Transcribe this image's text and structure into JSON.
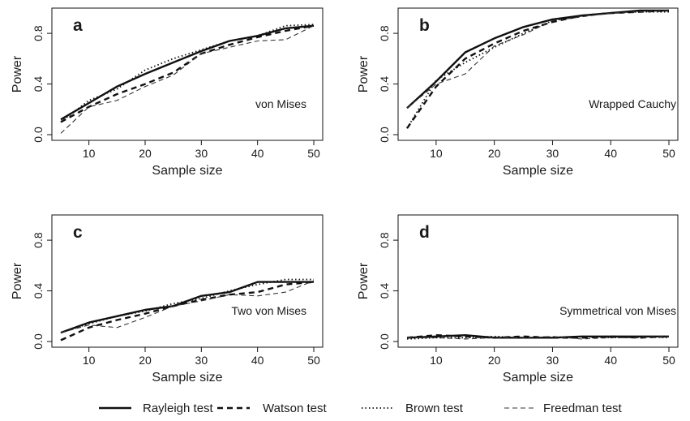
{
  "figure": {
    "ylabel": "Power",
    "xlabel": "Sample size"
  },
  "legend": {
    "items": [
      {
        "label": "Rayleigh test",
        "style": "solid"
      },
      {
        "label": "Watson test",
        "style": "dashed"
      },
      {
        "label": "Brown test",
        "style": "dotted"
      },
      {
        "label": "Freedman test",
        "style": "thin-dashed"
      }
    ]
  },
  "chart_data": [
    {
      "type": "line",
      "panel_letter": "a",
      "annotation": "von Mises",
      "xlabel": "Sample size",
      "ylabel": "Power",
      "x": [
        5,
        10,
        15,
        20,
        25,
        30,
        35,
        40,
        45,
        50
      ],
      "xlim": [
        5,
        50
      ],
      "ylim": [
        0,
        0.98
      ],
      "xticks": [
        10,
        20,
        30,
        40,
        50
      ],
      "yticks": [
        "0.0",
        "0.4",
        "0.8"
      ],
      "series": [
        {
          "name": "Rayleigh test",
          "values": [
            0.12,
            0.25,
            0.38,
            0.48,
            0.57,
            0.66,
            0.74,
            0.78,
            0.84,
            0.86
          ]
        },
        {
          "name": "Watson test",
          "values": [
            0.1,
            0.22,
            0.32,
            0.4,
            0.49,
            0.64,
            0.71,
            0.77,
            0.82,
            0.86
          ]
        },
        {
          "name": "Brown test",
          "values": [
            0.1,
            0.27,
            0.36,
            0.51,
            0.6,
            0.67,
            0.74,
            0.78,
            0.86,
            0.87
          ]
        },
        {
          "name": "Freedman test",
          "values": [
            0.01,
            0.22,
            0.27,
            0.38,
            0.47,
            0.64,
            0.69,
            0.74,
            0.75,
            0.86
          ]
        }
      ]
    },
    {
      "type": "line",
      "panel_letter": "b",
      "annotation": "Wrapped Cauchy",
      "xlabel": "Sample size",
      "ylabel": "Power",
      "x": [
        5,
        10,
        15,
        20,
        25,
        30,
        35,
        40,
        45,
        50
      ],
      "xlim": [
        5,
        50
      ],
      "ylim": [
        0,
        0.98
      ],
      "xticks": [
        10,
        20,
        30,
        40,
        50
      ],
      "yticks": [
        "0.0",
        "0.4",
        "0.8"
      ],
      "series": [
        {
          "name": "Rayleigh test",
          "values": [
            0.21,
            0.42,
            0.65,
            0.76,
            0.85,
            0.91,
            0.94,
            0.96,
            0.98,
            0.98
          ]
        },
        {
          "name": "Watson test",
          "values": [
            0.05,
            0.38,
            0.6,
            0.72,
            0.82,
            0.89,
            0.94,
            0.96,
            0.97,
            0.98
          ]
        },
        {
          "name": "Brown test",
          "values": [
            0.05,
            0.43,
            0.57,
            0.69,
            0.8,
            0.9,
            0.94,
            0.96,
            0.97,
            0.97
          ]
        },
        {
          "name": "Freedman test",
          "values": [
            0.21,
            0.4,
            0.48,
            0.7,
            0.79,
            0.9,
            0.93,
            0.96,
            0.97,
            0.98
          ]
        }
      ]
    },
    {
      "type": "line",
      "panel_letter": "c",
      "annotation": "Two von Mises",
      "xlabel": "Sample size",
      "ylabel": "Power",
      "x": [
        5,
        10,
        15,
        20,
        25,
        30,
        35,
        40,
        45,
        50
      ],
      "xlim": [
        5,
        50
      ],
      "ylim": [
        0,
        0.98
      ],
      "xticks": [
        10,
        20,
        30,
        40,
        50
      ],
      "yticks": [
        "0.0",
        "0.4",
        "0.8"
      ],
      "series": [
        {
          "name": "Rayleigh test",
          "values": [
            0.07,
            0.15,
            0.2,
            0.25,
            0.28,
            0.36,
            0.39,
            0.47,
            0.47,
            0.47
          ]
        },
        {
          "name": "Watson test",
          "values": [
            0.01,
            0.11,
            0.17,
            0.22,
            0.28,
            0.33,
            0.37,
            0.39,
            0.45,
            0.47
          ]
        },
        {
          "name": "Brown test",
          "values": [
            0.07,
            0.14,
            0.2,
            0.24,
            0.3,
            0.34,
            0.4,
            0.45,
            0.49,
            0.49
          ]
        },
        {
          "name": "Freedman test",
          "values": [
            0.07,
            0.13,
            0.11,
            0.19,
            0.28,
            0.32,
            0.37,
            0.36,
            0.39,
            0.48
          ]
        }
      ]
    },
    {
      "type": "line",
      "panel_letter": "d",
      "annotation": "Symmetrical von Mises",
      "xlabel": "Sample size",
      "ylabel": "Power",
      "x": [
        5,
        10,
        15,
        20,
        25,
        30,
        35,
        40,
        45,
        50
      ],
      "xlim": [
        5,
        50
      ],
      "ylim": [
        0,
        0.98
      ],
      "xticks": [
        10,
        20,
        30,
        40,
        50
      ],
      "yticks": [
        "0.0",
        "0.4",
        "0.8"
      ],
      "series": [
        {
          "name": "Rayleigh test",
          "values": [
            0.03,
            0.04,
            0.05,
            0.03,
            0.03,
            0.03,
            0.04,
            0.04,
            0.04,
            0.04
          ]
        },
        {
          "name": "Watson test",
          "values": [
            0.03,
            0.05,
            0.04,
            0.03,
            0.04,
            0.03,
            0.03,
            0.04,
            0.03,
            0.04
          ]
        },
        {
          "name": "Brown test",
          "values": [
            0.02,
            0.03,
            0.03,
            0.04,
            0.03,
            0.03,
            0.04,
            0.03,
            0.04,
            0.03
          ]
        },
        {
          "name": "Freedman test",
          "values": [
            0.03,
            0.03,
            0.02,
            0.03,
            0.03,
            0.04,
            0.02,
            0.03,
            0.03,
            0.04
          ]
        }
      ]
    }
  ]
}
